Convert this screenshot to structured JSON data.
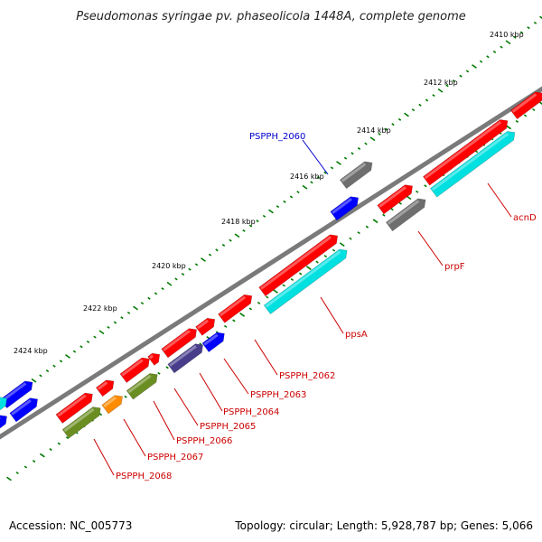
{
  "title": "Pseudomonas syringae pv. phaseolicola 1448A, complete genome",
  "accession": "Accession: NC_005773",
  "topology": "Topology: circular; Length: 5,928,787 bp; Genes: 5,066",
  "colors": {
    "backbone": "#7a7a7a",
    "red": "#ff0000",
    "cyan": "#00e0e0",
    "blue": "#0000ff",
    "gray": "#6e6e6e",
    "olive": "#6b8e23",
    "orange": "#ff8c00",
    "slate": "#483d8b",
    "tick": "#007a00"
  },
  "ruler": [
    {
      "label": "2410 kbp"
    },
    {
      "label": "2412 kbp"
    },
    {
      "label": "2414 kbp"
    },
    {
      "label": "2416 kbp"
    },
    {
      "label": "2418 kbp"
    },
    {
      "label": "2420 kbp"
    },
    {
      "label": "2422 kbp"
    },
    {
      "label": "2424 kbp"
    }
  ],
  "gene_labels": [
    {
      "name": "PSPPH_2060",
      "color": "#0000cc"
    },
    {
      "name": "acnD",
      "color": "#cc0000"
    },
    {
      "name": "prpF",
      "color": "#cc0000"
    },
    {
      "name": "ppsA",
      "color": "#cc0000"
    },
    {
      "name": "PSPPH_2062",
      "color": "#cc0000"
    },
    {
      "name": "PSPPH_2063",
      "color": "#cc0000"
    },
    {
      "name": "PSPPH_2064",
      "color": "#cc0000"
    },
    {
      "name": "PSPPH_2065",
      "color": "#cc0000"
    },
    {
      "name": "PSPPH_2066",
      "color": "#cc0000"
    },
    {
      "name": "PSPPH_2067",
      "color": "#cc0000"
    },
    {
      "name": "PSPPH_2068",
      "color": "#cc0000"
    }
  ]
}
